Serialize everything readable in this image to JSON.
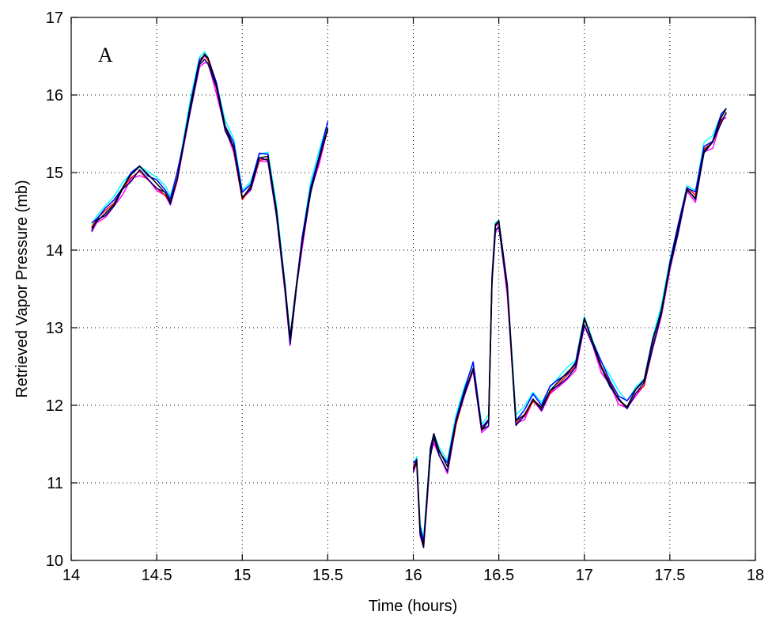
{
  "chart_data": {
    "type": "line",
    "panel_label": "A",
    "xlabel": "Time (hours)",
    "ylabel": "Retrieved Vapor Pressure (mb)",
    "xlim": [
      14,
      18
    ],
    "ylim": [
      10,
      17
    ],
    "x_ticks": [
      14,
      14.5,
      15,
      15.5,
      16,
      16.5,
      17,
      17.5,
      18
    ],
    "x_tick_labels": [
      "14",
      "14.5",
      "15",
      "15.5",
      "16",
      "16.5",
      "17",
      "17.5",
      "18"
    ],
    "y_ticks": [
      10,
      11,
      12,
      13,
      14,
      15,
      16,
      17
    ],
    "y_tick_labels": [
      "10",
      "11",
      "12",
      "13",
      "14",
      "15",
      "16",
      "17"
    ],
    "grid": true,
    "grid_style": "dotted",
    "segments": [
      {
        "x": [
          14.12,
          14.15,
          14.2,
          14.25,
          14.3,
          14.35,
          14.4,
          14.45,
          14.5,
          14.55,
          14.58,
          14.62,
          14.65,
          14.7,
          14.75,
          14.78,
          14.8,
          14.85,
          14.9,
          14.95,
          15.0,
          15.05,
          15.1,
          15.15,
          15.2,
          15.25,
          15.28,
          15.32,
          15.35,
          15.4,
          15.45,
          15.5
        ],
        "y": [
          14.3,
          14.4,
          14.5,
          14.6,
          14.8,
          14.95,
          15.05,
          14.95,
          14.85,
          14.75,
          14.65,
          14.95,
          15.3,
          15.9,
          16.4,
          16.5,
          16.45,
          16.1,
          15.6,
          15.35,
          14.7,
          14.85,
          15.2,
          15.2,
          14.5,
          13.5,
          12.85,
          13.6,
          14.1,
          14.8,
          15.2,
          15.6
        ]
      },
      {
        "x": [
          16.0,
          16.02,
          16.04,
          16.06,
          16.08,
          16.1,
          16.12,
          16.15,
          16.2,
          16.25,
          16.3,
          16.35,
          16.4,
          16.44,
          16.46,
          16.48,
          16.5,
          16.55,
          16.6,
          16.65,
          16.7,
          16.75,
          16.8,
          16.85,
          16.9,
          16.95,
          17.0,
          17.05,
          17.1,
          17.15,
          17.2,
          17.25,
          17.3,
          17.35,
          17.4,
          17.45,
          17.5,
          17.55,
          17.6,
          17.65,
          17.7,
          17.75,
          17.8,
          17.83
        ],
        "y": [
          11.2,
          11.3,
          10.4,
          10.2,
          10.8,
          11.4,
          11.6,
          11.4,
          11.2,
          11.8,
          12.2,
          12.5,
          11.7,
          11.8,
          13.6,
          14.3,
          14.35,
          13.5,
          11.8,
          11.9,
          12.1,
          12.0,
          12.2,
          12.3,
          12.4,
          12.5,
          13.1,
          12.8,
          12.5,
          12.3,
          12.1,
          12.0,
          12.2,
          12.3,
          12.8,
          13.2,
          13.8,
          14.3,
          14.8,
          14.7,
          15.3,
          15.4,
          15.7,
          15.8
        ]
      }
    ],
    "series": [
      {
        "color": "#ff00ff",
        "offset": -0.06
      },
      {
        "color": "#00ffff",
        "offset": 0.06
      },
      {
        "color": "#ff0000",
        "offset": -0.02
      },
      {
        "color": "#0000ff",
        "offset": 0.03
      },
      {
        "color": "#000080",
        "offset": -0.035
      },
      {
        "color": "#000000",
        "offset": 0.0
      }
    ],
    "annotations": [
      {
        "text": "A",
        "x": 14.2,
        "y": 16.52
      }
    ]
  }
}
